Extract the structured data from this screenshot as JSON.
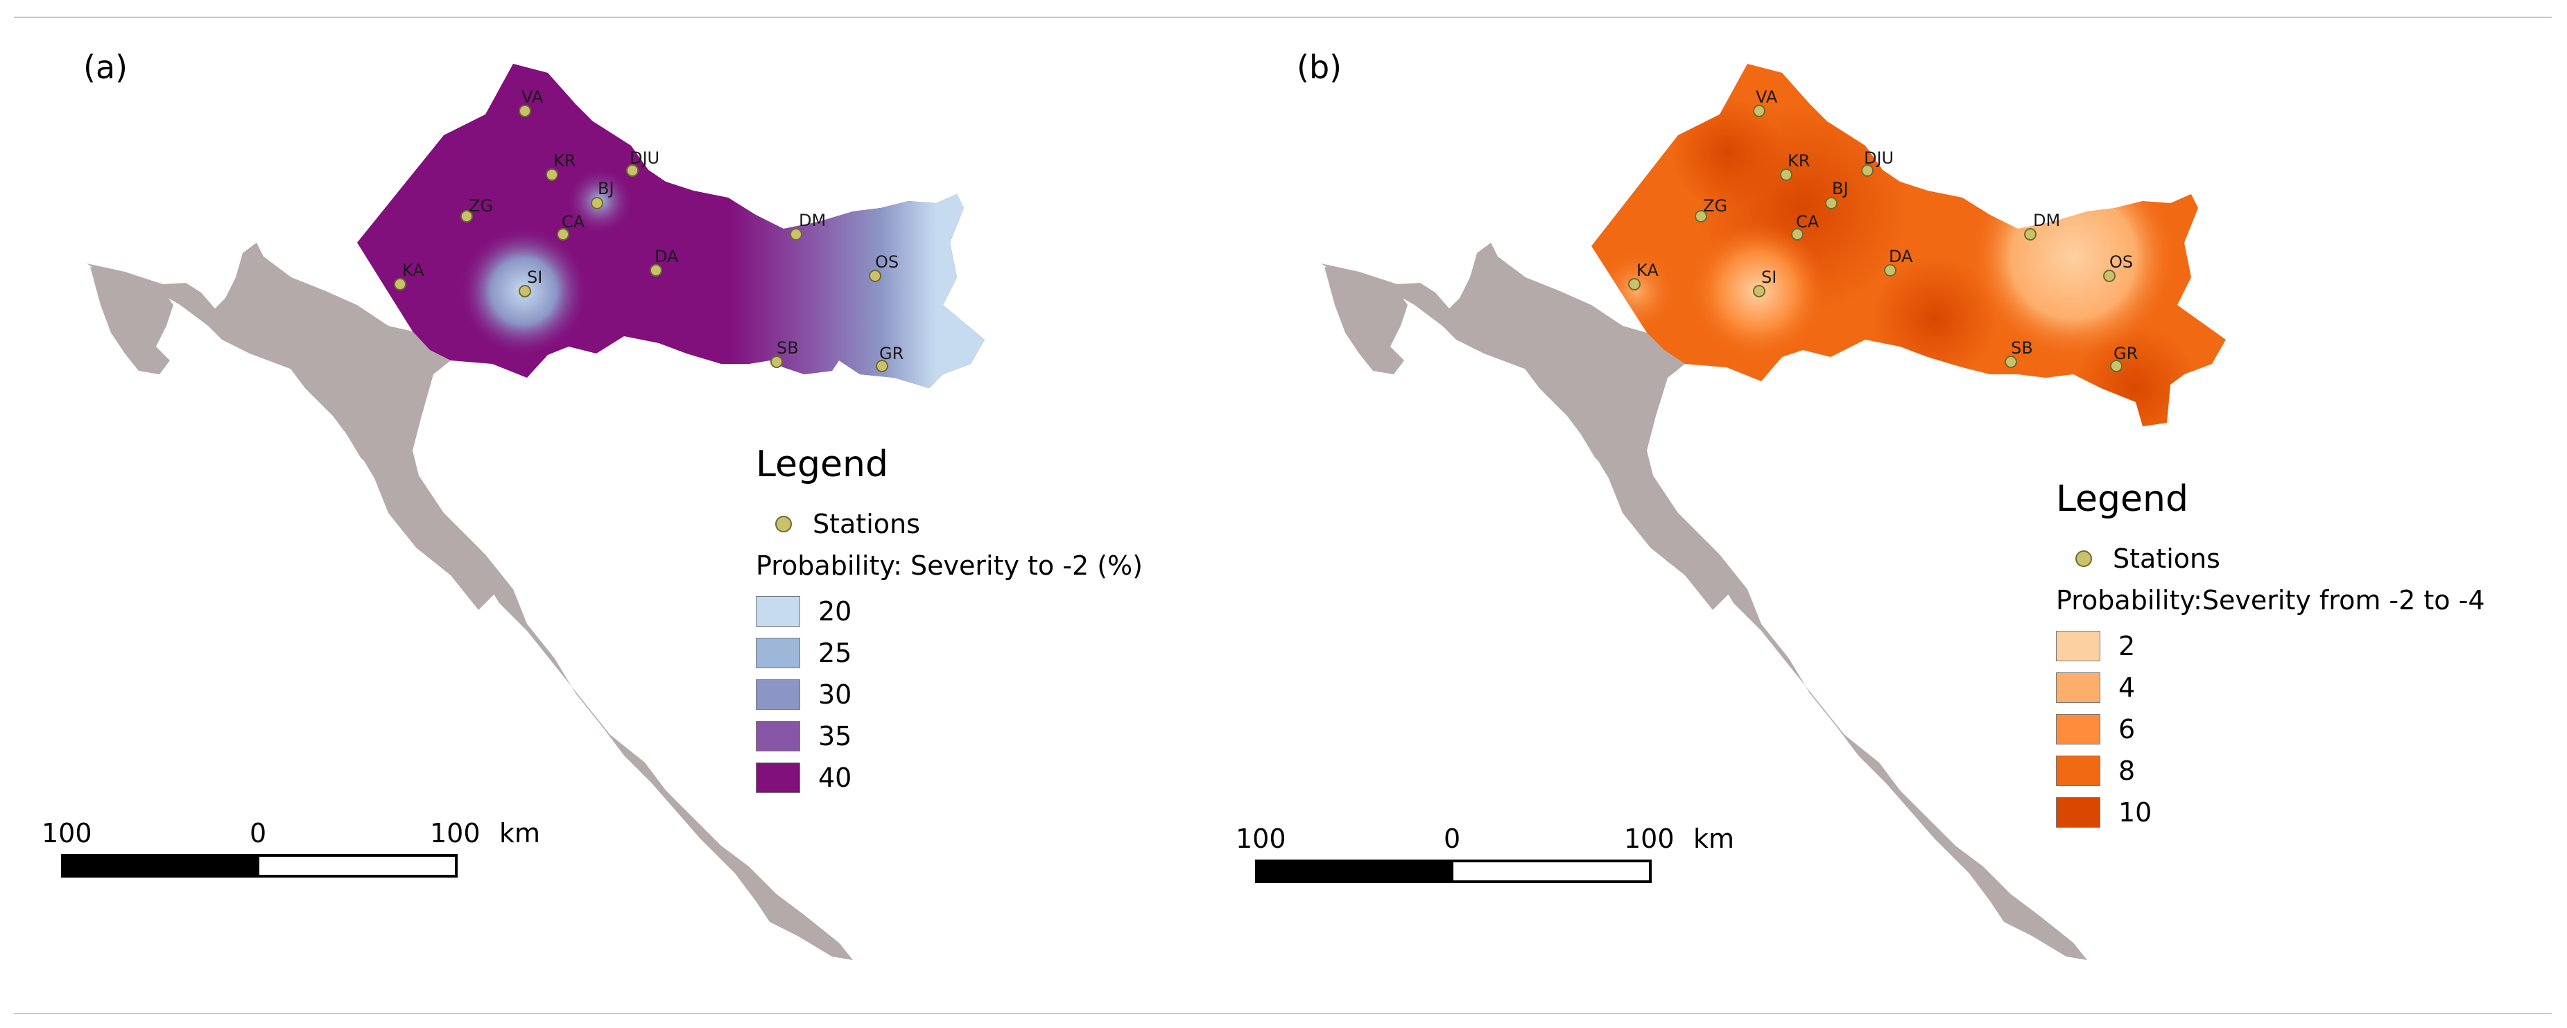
{
  "colors": {
    "land_gray": "#b5aaaa",
    "station_fill": "#c9c26a",
    "panel_a_ramp": [
      "#c6dbef",
      "#9ecae1",
      "#8c96c6",
      "#8856a7",
      "#810f7c"
    ],
    "panel_b_ramp": [
      "#fdd0a2",
      "#fdae6b",
      "#fd8d3c",
      "#f16913",
      "#d94801"
    ]
  },
  "panels": [
    {
      "label": "(a)",
      "legend": {
        "title": "Legend",
        "stations_label": "Stations",
        "variable": "Probability: Severity to -2 (%)",
        "classes": [
          "20",
          "25",
          "30",
          "35",
          "40"
        ]
      },
      "scalebar": {
        "left": "100",
        "mid": "0",
        "right": "100",
        "unit": "km"
      },
      "stations": [
        "VA",
        "KR",
        "DJU",
        "BJ",
        "ZG",
        "CA",
        "DM",
        "KA",
        "SI",
        "DA",
        "OS",
        "SB",
        "GR"
      ]
    },
    {
      "label": "(b)",
      "legend": {
        "title": "Legend",
        "stations_label": "Stations",
        "variable": "Probability:Severity from -2 to -4 (%)",
        "classes": [
          "2",
          "4",
          "6",
          "8",
          "10"
        ]
      },
      "scalebar": {
        "left": "100",
        "mid": "0",
        "right": "100",
        "unit": "km"
      },
      "stations": [
        "VA",
        "KR",
        "DJU",
        "BJ",
        "ZG",
        "CA",
        "DM",
        "KA",
        "SI",
        "DA",
        "OS",
        "SB",
        "GR"
      ]
    }
  ]
}
